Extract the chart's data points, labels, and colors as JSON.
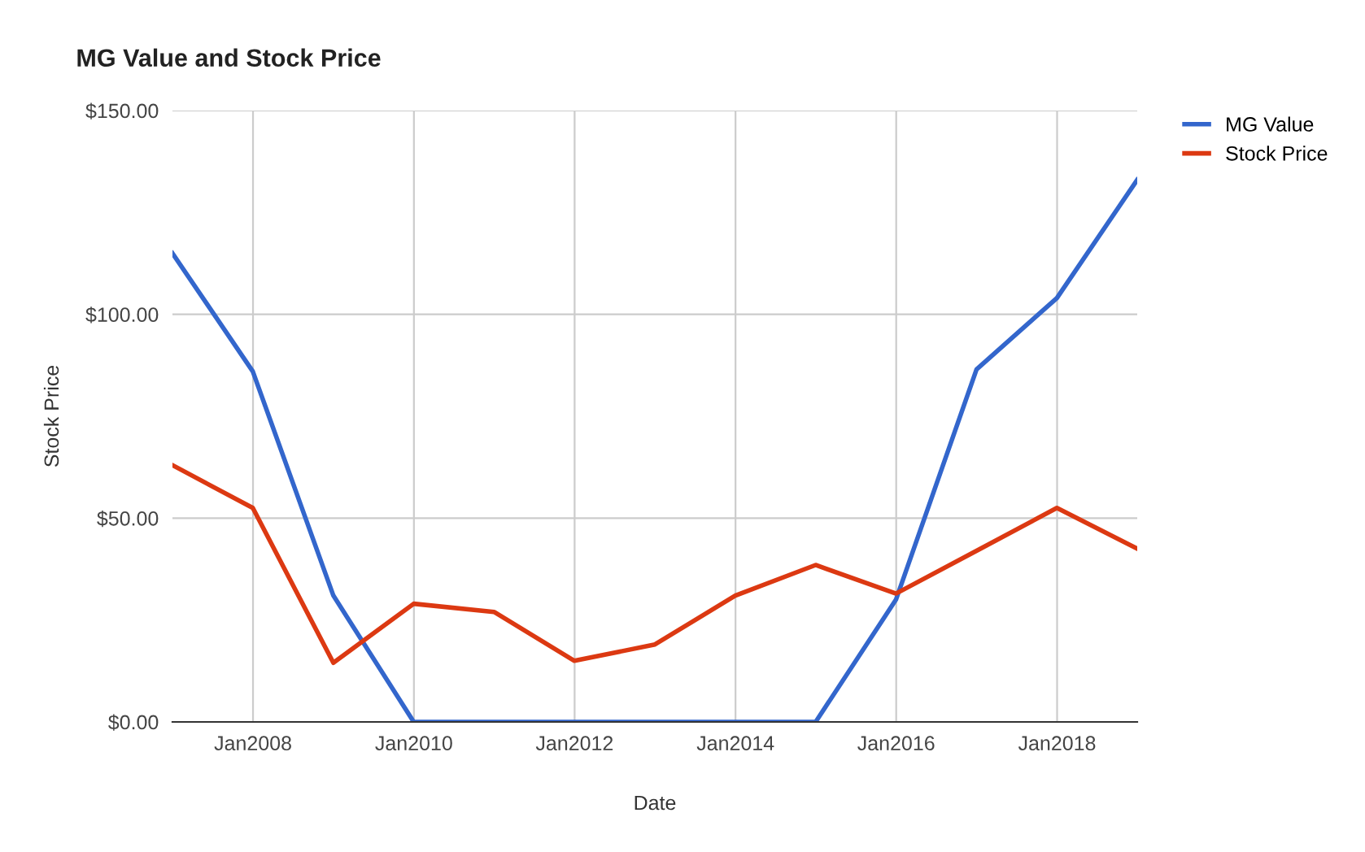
{
  "chart_data": {
    "type": "line",
    "title": "MG Value and Stock Price",
    "xlabel": "Date",
    "ylabel": "Stock Price",
    "x": [
      "2006-12-31",
      "2007-12-31",
      "2008-12-31",
      "2009-12-31",
      "2010-12-31",
      "2011-12-31",
      "2012-12-31",
      "2013-12-31",
      "2014-12-31",
      "2015-12-31",
      "2016-12-31",
      "2017-12-31",
      "2018-12-31"
    ],
    "series": [
      {
        "name": "MG Value",
        "color": "#3366cc",
        "values": [
          115,
          86,
          31,
          0,
          0,
          0,
          0,
          0,
          0,
          30,
          86.5,
          104,
          133
        ]
      },
      {
        "name": "Stock Price",
        "color": "#dc3912",
        "values": [
          63,
          52.5,
          14.5,
          29,
          27,
          15,
          19,
          31,
          38.5,
          31.5,
          42,
          52.5,
          42.5
        ]
      }
    ],
    "xlim": [
      "2006-12-31",
      "2018-12-31"
    ],
    "xticks": [
      {
        "value": "2008-01-01",
        "label": "Jan2008"
      },
      {
        "value": "2010-01-01",
        "label": "Jan2010"
      },
      {
        "value": "2012-01-01",
        "label": "Jan2012"
      },
      {
        "value": "2014-01-01",
        "label": "Jan2014"
      },
      {
        "value": "2016-01-01",
        "label": "Jan2016"
      },
      {
        "value": "2018-01-01",
        "label": "Jan2018"
      }
    ],
    "ylim": [
      0,
      150
    ],
    "yticks": [
      {
        "value": 0,
        "label": "$0.00"
      },
      {
        "value": 50,
        "label": "$50.00"
      },
      {
        "value": 100,
        "label": "$100.00"
      },
      {
        "value": 150,
        "label": "$150.00"
      }
    ],
    "grid": true,
    "legend": "top right",
    "marker": "none",
    "line_style": "solid"
  }
}
